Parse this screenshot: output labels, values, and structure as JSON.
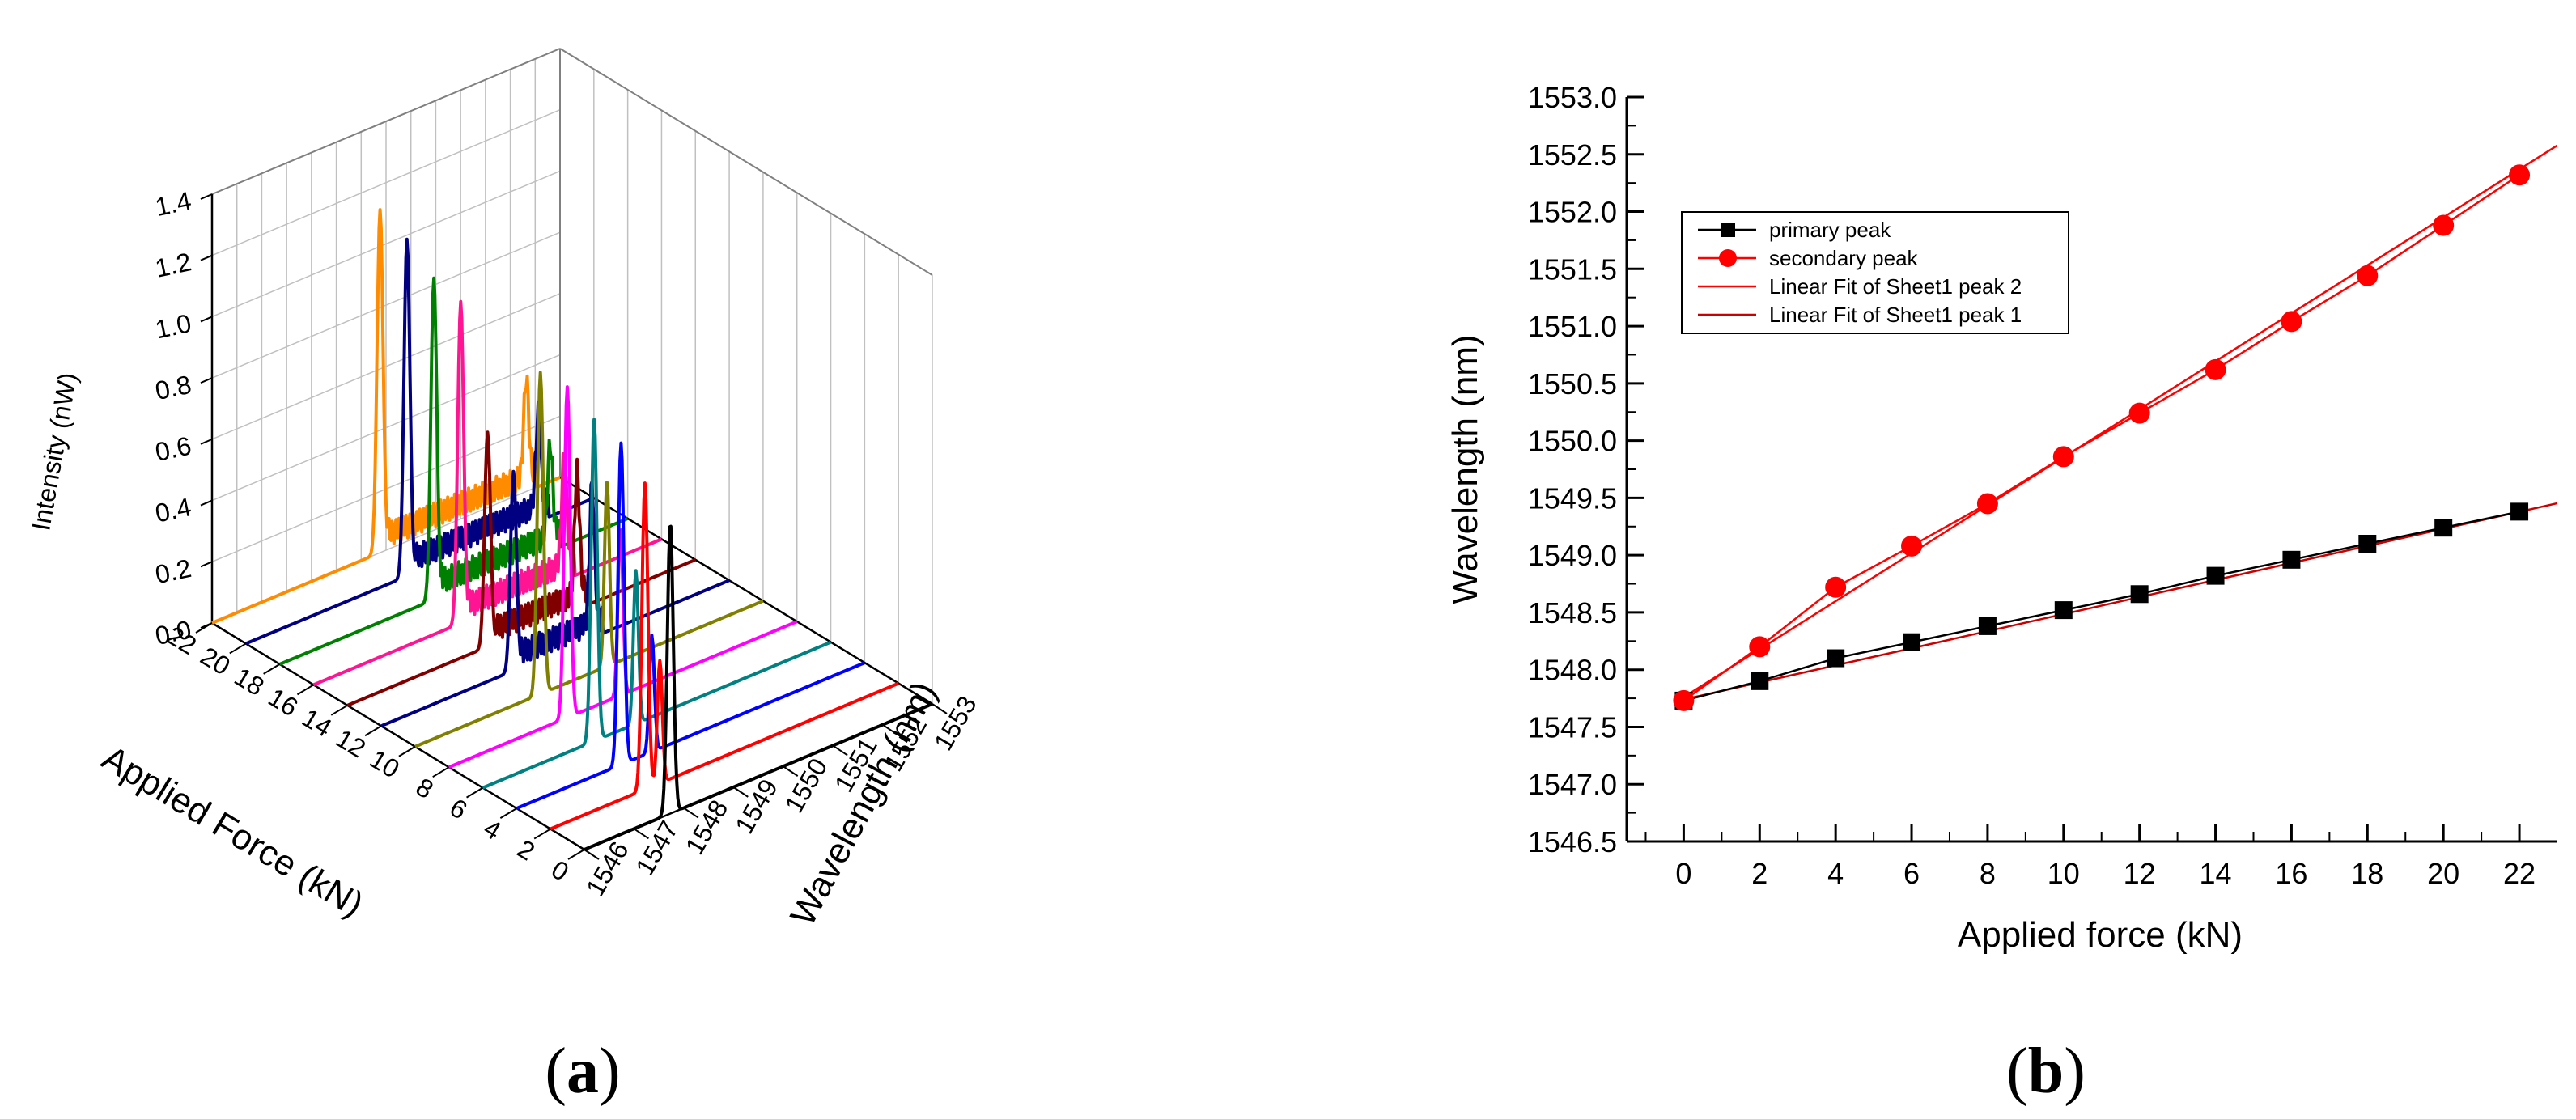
{
  "figure": {
    "label_a": "a",
    "label_b": "b"
  },
  "chart_data": [
    {
      "type": "line",
      "projection": "3d-waterfall",
      "zlabel": "Intensity (nW)",
      "z_ticks": [
        "0.0",
        "0.2",
        "0.4",
        "0.6",
        "0.8",
        "1.0",
        "1.2",
        "1.4"
      ],
      "zlim": [
        0,
        1.4
      ],
      "force_label": "Applied Force (kN)",
      "force_ticks": [
        "22",
        "20",
        "18",
        "16",
        "14",
        "12",
        "10",
        "8",
        "6",
        "4",
        "2",
        "0"
      ],
      "wavelength_label": "Wavelength (nm)",
      "wavelength_ticks": [
        "1546",
        "1547",
        "1548",
        "1549",
        "1550",
        "1551",
        "1552",
        "1553"
      ],
      "wavelength_range": [
        1546,
        1553
      ],
      "series": [
        {
          "force": 0,
          "color": "#000000",
          "primary_peak_nm": 1547.73,
          "primary_intensity": 0.95,
          "secondary_peak_nm": 1547.73,
          "secondary_intensity": 0.0
        },
        {
          "force": 2,
          "color": "#ff0000",
          "primary_peak_nm": 1547.9,
          "primary_intensity": 1.0,
          "secondary_peak_nm": 1548.2,
          "secondary_intensity": 0.4
        },
        {
          "force": 4,
          "color": "#0000ff",
          "primary_peak_nm": 1548.1,
          "primary_intensity": 1.05,
          "secondary_peak_nm": 1548.72,
          "secondary_intensity": 0.38
        },
        {
          "force": 6,
          "color": "#008080",
          "primary_peak_nm": 1548.24,
          "primary_intensity": 1.05,
          "secondary_peak_nm": 1549.08,
          "secondary_intensity": 0.5
        },
        {
          "force": 8,
          "color": "#ff00ff",
          "primary_peak_nm": 1548.38,
          "primary_intensity": 1.08,
          "secondary_peak_nm": 1549.45,
          "secondary_intensity": 0.55
        },
        {
          "force": 10,
          "color": "#808000",
          "primary_peak_nm": 1548.52,
          "primary_intensity": 1.05,
          "secondary_peak_nm": 1549.86,
          "secondary_intensity": 0.6
        },
        {
          "force": 12,
          "color": "#000080",
          "primary_peak_nm": 1548.66,
          "primary_intensity": 0.65,
          "secondary_peak_nm": 1550.24,
          "secondary_intensity": 0.45
        },
        {
          "force": 14,
          "color": "#800000",
          "primary_peak_nm": 1548.82,
          "primary_intensity": 0.7,
          "secondary_peak_nm": 1550.62,
          "secondary_intensity": 0.4
        },
        {
          "force": 16,
          "color": "#ff1493",
          "primary_peak_nm": 1548.96,
          "primary_intensity": 1.05,
          "secondary_peak_nm": 1551.04,
          "secondary_intensity": 0.35
        },
        {
          "force": 18,
          "color": "#008000",
          "primary_peak_nm": 1549.1,
          "primary_intensity": 1.05,
          "secondary_peak_nm": 1551.44,
          "secondary_intensity": 0.3
        },
        {
          "force": 20,
          "color": "#000080",
          "primary_peak_nm": 1549.24,
          "primary_intensity": 1.1,
          "secondary_peak_nm": 1551.88,
          "secondary_intensity": 0.3
        },
        {
          "force": 22,
          "color": "#ff8c00",
          "primary_peak_nm": 1549.38,
          "primary_intensity": 1.12,
          "secondary_peak_nm": 1552.32,
          "secondary_intensity": 0.32
        }
      ]
    },
    {
      "type": "scatter",
      "title": "",
      "xlabel": "Applied force (kN)",
      "ylabel": "Wavelength (nm)",
      "xlim": [
        -1.5,
        23
      ],
      "ylim": [
        1546.5,
        1553.0
      ],
      "x_ticks": [
        "0",
        "2",
        "4",
        "6",
        "8",
        "10",
        "12",
        "14",
        "16",
        "18",
        "20",
        "22"
      ],
      "y_ticks": [
        "1546.5",
        "1547.0",
        "1547.5",
        "1548.0",
        "1548.5",
        "1549.0",
        "1549.5",
        "1550.0",
        "1550.5",
        "1551.0",
        "1551.5",
        "1552.0",
        "1552.5",
        "1553.0"
      ],
      "x": [
        0,
        2,
        4,
        6,
        8,
        10,
        12,
        14,
        16,
        18,
        20,
        22
      ],
      "series": [
        {
          "name": "primary peak",
          "marker": "square",
          "color": "#000000",
          "values": [
            1547.73,
            1547.9,
            1548.1,
            1548.24,
            1548.38,
            1548.52,
            1548.66,
            1548.82,
            1548.96,
            1549.1,
            1549.24,
            1549.38
          ]
        },
        {
          "name": "secondary peak",
          "marker": "circle",
          "color": "#ff0000",
          "values": [
            1547.73,
            1548.2,
            1548.72,
            1549.08,
            1549.45,
            1549.86,
            1550.24,
            1550.62,
            1551.04,
            1551.44,
            1551.88,
            1552.32
          ]
        }
      ],
      "fits": [
        {
          "name": "Linear Fit of Sheet1 peak 2",
          "color": "#ff0000",
          "slope": 0.2095,
          "intercept": 1547.76
        },
        {
          "name": "Linear Fit of Sheet1 peak 1",
          "color": "#cc0000",
          "slope": 0.0745,
          "intercept": 1547.74
        }
      ],
      "legend": "top-left"
    }
  ]
}
